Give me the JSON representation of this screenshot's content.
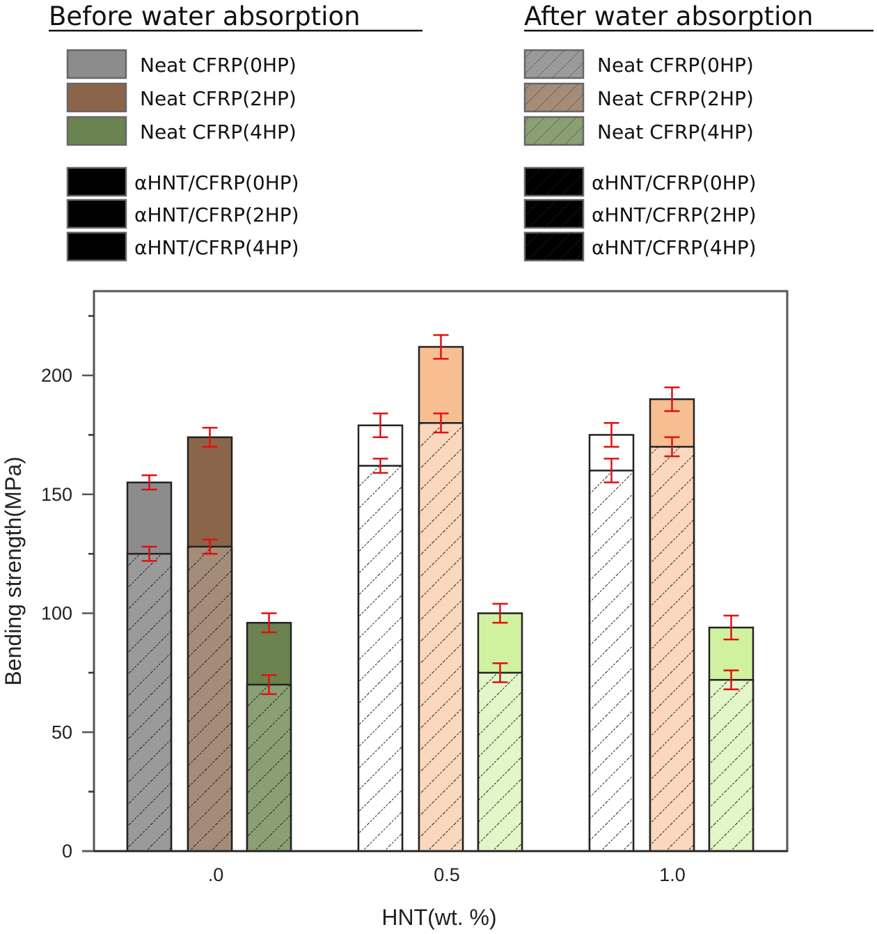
{
  "chart_data": {
    "type": "bar",
    "subtype": "grouped-overlaid",
    "title": "",
    "xlabel": "HNT(wt. %)",
    "ylabel": "Bending strength(MPa)",
    "ylim": [
      0,
      235
    ],
    "yticks": [
      0,
      50,
      100,
      150,
      200
    ],
    "yminor": [
      25,
      75,
      125,
      175,
      225
    ],
    "categories": [
      ".0",
      "0.5",
      "1.0"
    ],
    "grid": false,
    "legend": {
      "before": {
        "title": "Before water absorption",
        "placement": "top-left",
        "entries": [
          "Neat CFRP(0HP)",
          "Neat CFRP(2HP)",
          "Neat CFRP(4HP)",
          "αHNT/CFRP(0HP)",
          "αHNT/CFRP(2HP)",
          "αHNT/CFRP(4HP)"
        ]
      },
      "after": {
        "title": "After water absorption",
        "placement": "top-right",
        "entries": [
          "Neat CFRP(0HP)",
          "Neat CFRP(2HP)",
          "Neat CFRP(4HP)",
          "αHNT/CFRP(0HP)",
          "αHNT/CFRP(2HP)",
          "αHNT/CFRP(4HP)"
        ]
      }
    },
    "series_by_condition": [
      "0HP",
      "2HP",
      "4HP"
    ],
    "series": [
      {
        "name": "0HP",
        "before": [
          155,
          179,
          175
        ],
        "before_err": [
          3,
          5,
          5
        ],
        "after": [
          125,
          162,
          160
        ],
        "after_err": [
          3,
          3,
          5
        ]
      },
      {
        "name": "2HP",
        "before": [
          174,
          212,
          190
        ],
        "before_err": [
          4,
          5,
          5
        ],
        "after": [
          128,
          180,
          170
        ],
        "after_err": [
          3,
          4,
          4
        ]
      },
      {
        "name": "4HP",
        "before": [
          96,
          100,
          94
        ],
        "before_err": [
          4,
          4,
          5
        ],
        "after": [
          70,
          75,
          72
        ],
        "after_err": [
          4,
          4,
          4
        ]
      }
    ],
    "colors": {
      "neat": {
        "0HP": "#8c8c8c",
        "2HP": "#8b6549",
        "4HP": "#6a8350"
      },
      "hnt": {
        "0HP": "#ffffff",
        "2HP": "#f7be92",
        "4HP": "#d0f2a0"
      },
      "neat_after": {
        "0HP": "#9a9a9a",
        "2HP": "#a48c78",
        "4HP": "#8a9f74"
      },
      "hnt_after": {
        "0HP": "#ffffff",
        "2HP": "#fad7bd",
        "4HP": "#e2f6c8"
      },
      "error_bar": "#e01010",
      "axis": "#555555"
    }
  }
}
